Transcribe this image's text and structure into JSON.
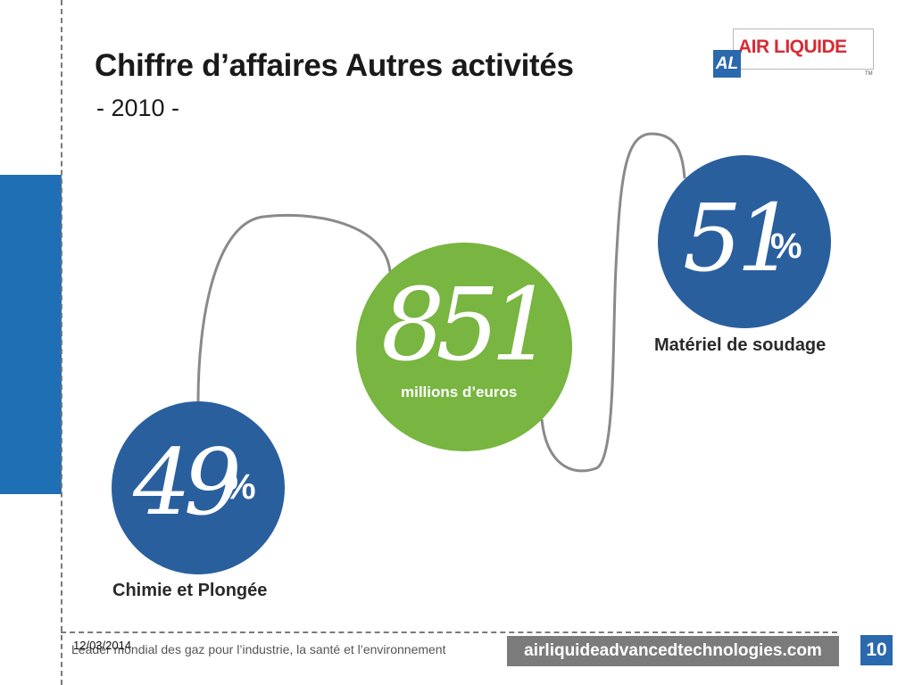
{
  "slide": {
    "title": "Chiffre d’affaires Autres activités",
    "subtitle": "- 2010 -"
  },
  "logo": {
    "text": "AIR LIQUIDE",
    "mark": "AL",
    "tm": "TM",
    "brand_color": "#d72b33",
    "mark_color": "#2a69ad"
  },
  "total": {
    "value": "851",
    "unit": "millions d’euros",
    "color": "#78b541"
  },
  "segments": [
    {
      "value": "49",
      "symbol": "%",
      "label": "Chimie et Plongée",
      "color": "#2a5f9e"
    },
    {
      "value": "51",
      "symbol": "%",
      "label": "Matériel de soudage",
      "color": "#2a5f9e"
    }
  ],
  "footer": {
    "date": "12/03/2014",
    "tagline": "Leader mondial des gaz pour l’industrie, la santé et l’environnement",
    "url": "airliquideadvancedtechnologies.com",
    "page_number": "10"
  }
}
